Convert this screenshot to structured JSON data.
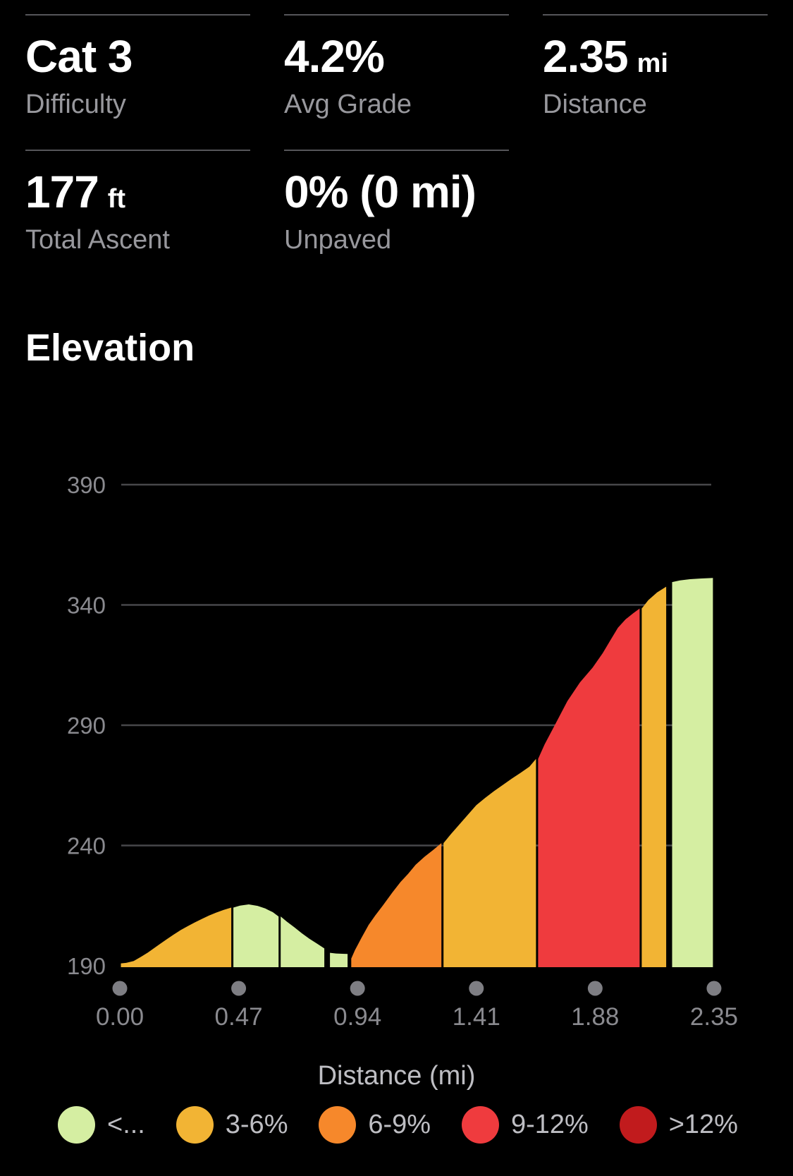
{
  "stats": {
    "items": [
      {
        "value": "Cat 3",
        "unit": "",
        "label": "Difficulty"
      },
      {
        "value": "4.2%",
        "unit": "",
        "label": "Avg Grade"
      },
      {
        "value": "2.35",
        "unit": "mi",
        "label": "Distance"
      },
      {
        "value": "177",
        "unit": "ft",
        "label": "Total Ascent"
      },
      {
        "value": "0% (0 mi)",
        "unit": "",
        "label": "Unpaved"
      }
    ]
  },
  "section_title": "Elevation",
  "chart_data": {
    "type": "area",
    "title": "Elevation",
    "xlabel": "Distance (mi)",
    "ylabel": "",
    "xlim": [
      0,
      2.35
    ],
    "ylim": [
      190,
      390
    ],
    "grid": "horizontal-only",
    "x_ticks": [
      0.0,
      0.47,
      0.94,
      1.41,
      1.88,
      2.35
    ],
    "x_tick_labels": [
      "0.00",
      "0.47",
      "0.94",
      "1.41",
      "1.88",
      "2.35"
    ],
    "y_ticks": [
      190,
      240,
      290,
      340,
      390
    ],
    "y_tick_labels": [
      "190",
      "240",
      "290",
      "340",
      "390"
    ],
    "profile_units": {
      "x": "mi",
      "y": "ft"
    },
    "profile": [
      [
        0.0,
        191.0
      ],
      [
        0.025,
        191.2
      ],
      [
        0.055,
        192.0
      ],
      [
        0.085,
        193.8
      ],
      [
        0.111,
        195.5
      ],
      [
        0.135,
        197.3
      ],
      [
        0.158,
        199.0
      ],
      [
        0.185,
        201.0
      ],
      [
        0.213,
        203.0
      ],
      [
        0.24,
        204.8
      ],
      [
        0.269,
        206.5
      ],
      [
        0.296,
        208.0
      ],
      [
        0.325,
        209.5
      ],
      [
        0.353,
        210.9
      ],
      [
        0.381,
        212.1
      ],
      [
        0.41,
        213.2
      ],
      [
        0.445,
        214.2
      ],
      [
        0.475,
        215.0
      ],
      [
        0.51,
        215.5
      ],
      [
        0.545,
        214.9
      ],
      [
        0.575,
        213.8
      ],
      [
        0.605,
        212.3
      ],
      [
        0.632,
        210.5
      ],
      [
        0.66,
        208.4
      ],
      [
        0.69,
        206.0
      ],
      [
        0.72,
        203.5
      ],
      [
        0.75,
        201.2
      ],
      [
        0.78,
        199.2
      ],
      [
        0.813,
        197.2
      ],
      [
        0.827,
        195.4
      ],
      [
        0.855,
        195.1
      ],
      [
        0.88,
        195.0
      ],
      [
        0.905,
        194.9
      ],
      [
        0.911,
        193.0
      ],
      [
        0.93,
        196.5
      ],
      [
        0.955,
        201.5
      ],
      [
        0.984,
        207.0
      ],
      [
        1.01,
        210.9
      ],
      [
        1.04,
        215.0
      ],
      [
        1.078,
        220.5
      ],
      [
        1.11,
        224.8
      ],
      [
        1.14,
        228.2
      ],
      [
        1.17,
        232.0
      ],
      [
        1.205,
        235.3
      ],
      [
        1.24,
        238.2
      ],
      [
        1.276,
        241.0
      ],
      [
        1.31,
        244.8
      ],
      [
        1.345,
        249.0
      ],
      [
        1.38,
        253.2
      ],
      [
        1.41,
        256.8
      ],
      [
        1.445,
        259.8
      ],
      [
        1.48,
        262.6
      ],
      [
        1.515,
        265.2
      ],
      [
        1.55,
        267.8
      ],
      [
        1.585,
        270.2
      ],
      [
        1.62,
        272.8
      ],
      [
        1.65,
        276.0
      ],
      [
        1.68,
        282.0
      ],
      [
        1.72,
        290.0
      ],
      [
        1.77,
        300.0
      ],
      [
        1.82,
        307.8
      ],
      [
        1.87,
        314.0
      ],
      [
        1.91,
        320.0
      ],
      [
        1.94,
        325.3
      ],
      [
        1.97,
        330.5
      ],
      [
        2.0,
        334.0
      ],
      [
        2.03,
        336.5
      ],
      [
        2.06,
        338.5
      ],
      [
        2.09,
        342.0
      ],
      [
        2.125,
        345.2
      ],
      [
        2.165,
        347.6
      ],
      [
        2.18,
        349.5
      ],
      [
        2.215,
        350.2
      ],
      [
        2.255,
        350.7
      ],
      [
        2.3,
        351.0
      ],
      [
        2.35,
        351.2
      ]
    ],
    "segments": [
      {
        "from": 0.0,
        "to": 0.445,
        "grade": "3-6%",
        "color": "#F2B434"
      },
      {
        "from": 0.445,
        "to": 0.632,
        "grade": "<3%",
        "color": "#D5EEA2"
      },
      {
        "from": 0.632,
        "to": 0.813,
        "grade": "<3%",
        "color": "#D5EEA2"
      },
      {
        "from": 0.827,
        "to": 0.905,
        "grade": "<3%",
        "color": "#D5EEA2"
      },
      {
        "from": 0.911,
        "to": 1.276,
        "grade": "6-9%",
        "color": "#F6882B"
      },
      {
        "from": 1.276,
        "to": 1.65,
        "grade": "3-6%",
        "color": "#F2B434"
      },
      {
        "from": 1.65,
        "to": 2.06,
        "grade": "9-12%",
        "color": "#EF3B3E"
      },
      {
        "from": 2.06,
        "to": 2.165,
        "grade": "3-6%",
        "color": "#F2B434"
      },
      {
        "from": 2.18,
        "to": 2.35,
        "grade": "<3%",
        "color": "#D5EEA2"
      }
    ],
    "legend": {
      "position": "bottom",
      "items": [
        {
          "label": "<...",
          "color": "#D5EEA2"
        },
        {
          "label": "3-6%",
          "color": "#F2B434"
        },
        {
          "label": "6-9%",
          "color": "#F6882B"
        },
        {
          "label": "9-12%",
          "color": "#EF3B3E"
        },
        {
          "label": ">12%",
          "color": "#C11B1D"
        }
      ]
    },
    "style": {
      "background": "#000000",
      "gridline_color": "#47474A",
      "axis_dot_color": "#7E7E83",
      "tick_label_color": "#8A8A8F",
      "divider_color": "#000000"
    }
  }
}
